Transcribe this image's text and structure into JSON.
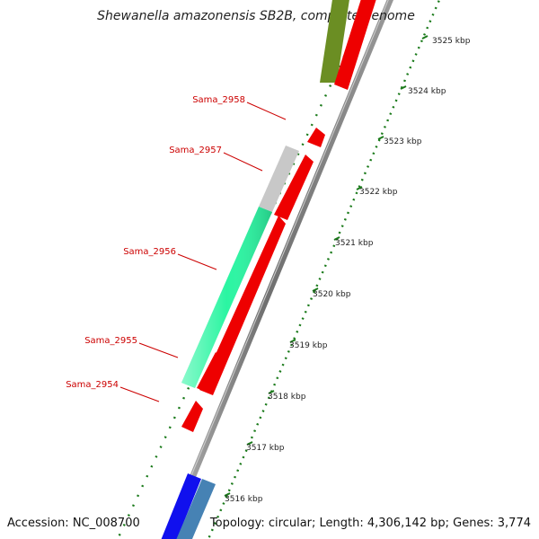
{
  "title": "Shewanella amazonensis SB2B, complete genome",
  "gene_labels": [
    "Sama_2958",
    "Sama_2957",
    "Sama_2956",
    "Sama_2955",
    "Sama_2954"
  ],
  "ticks": [
    "3525 kbp",
    "3524 kbp",
    "3523 kbp",
    "3522 kbp",
    "3521 kbp",
    "3520 kbp",
    "3519 kbp",
    "3518 kbp",
    "3517 kbp",
    "3516 kbp"
  ],
  "colors": {
    "red": "#ee0000",
    "olive": "#6b8e23",
    "silver": "#c8c8c8",
    "mint": "#2bf5a2",
    "blue": "#1010ee",
    "steelblue": "#4682b4",
    "green_dots": "#1a7a1a",
    "label_red": "#cc0000",
    "backbone": "#777777"
  },
  "footer": {
    "accession": "Accession: NC_008700",
    "summary": "Topology: circular; Length: 4,306,142 bp; Genes: 3,774"
  }
}
